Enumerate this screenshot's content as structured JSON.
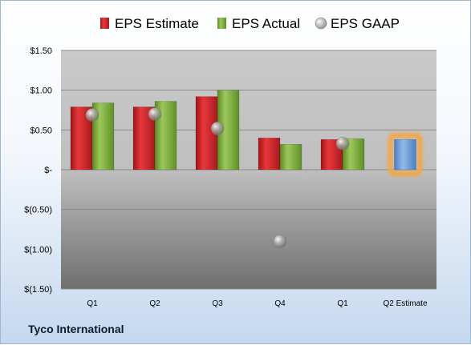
{
  "company": "Tyco International",
  "chart_data": {
    "type": "bar",
    "categories": [
      "Q1",
      "Q2",
      "Q3",
      "Q4",
      "Q1",
      "Q2 Estimate"
    ],
    "series": [
      {
        "name": "EPS Estimate",
        "color": "#d8282c",
        "values": [
          0.79,
          0.79,
          0.92,
          0.4,
          0.38,
          null
        ]
      },
      {
        "name": "EPS Actual",
        "color": "#80b040",
        "values": [
          0.84,
          0.86,
          1.0,
          0.32,
          0.39,
          null
        ]
      },
      {
        "name": "Q2 Estimate",
        "color": "#6d9fd8",
        "values": [
          null,
          null,
          null,
          null,
          null,
          0.38
        ]
      },
      {
        "name": "EPS GAAP",
        "color": "#a5a5a5",
        "type": "scatter",
        "values": [
          0.69,
          0.7,
          0.52,
          -0.9,
          0.33,
          null
        ]
      }
    ],
    "legend": [
      "EPS Estimate",
      "EPS Actual",
      "EPS GAAP"
    ],
    "legend_position": "top",
    "ylim": [
      -1.5,
      1.5
    ],
    "yticks": [
      1.5,
      1.0,
      0.5,
      0,
      -0.5,
      -1.0,
      -1.5
    ],
    "ytick_labels": [
      "$1.50",
      "$1.00",
      "$0.50",
      "$-",
      "$(0.50)",
      "$(1.00)",
      "$(1.50)"
    ],
    "grid": true,
    "highlight_category": "Q2 Estimate"
  }
}
